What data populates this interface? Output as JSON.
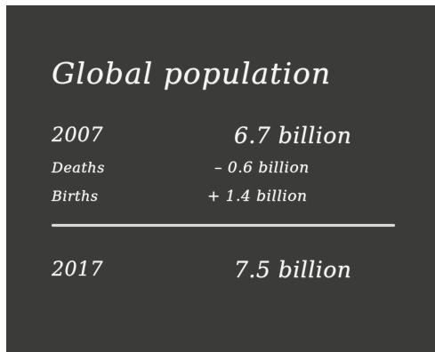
{
  "title": "Global population",
  "rows": {
    "start": {
      "label": "2007",
      "value": "6.7 billion"
    },
    "deaths": {
      "label": "Deaths",
      "value": "– 0.6 billion"
    },
    "births": {
      "label": "Births",
      "value": "+  1.4 billion"
    },
    "end": {
      "label": "2017",
      "value": "7.5 billion"
    }
  },
  "colors": {
    "board": "#3b3b3a",
    "chalk": "#f4f4f2"
  }
}
